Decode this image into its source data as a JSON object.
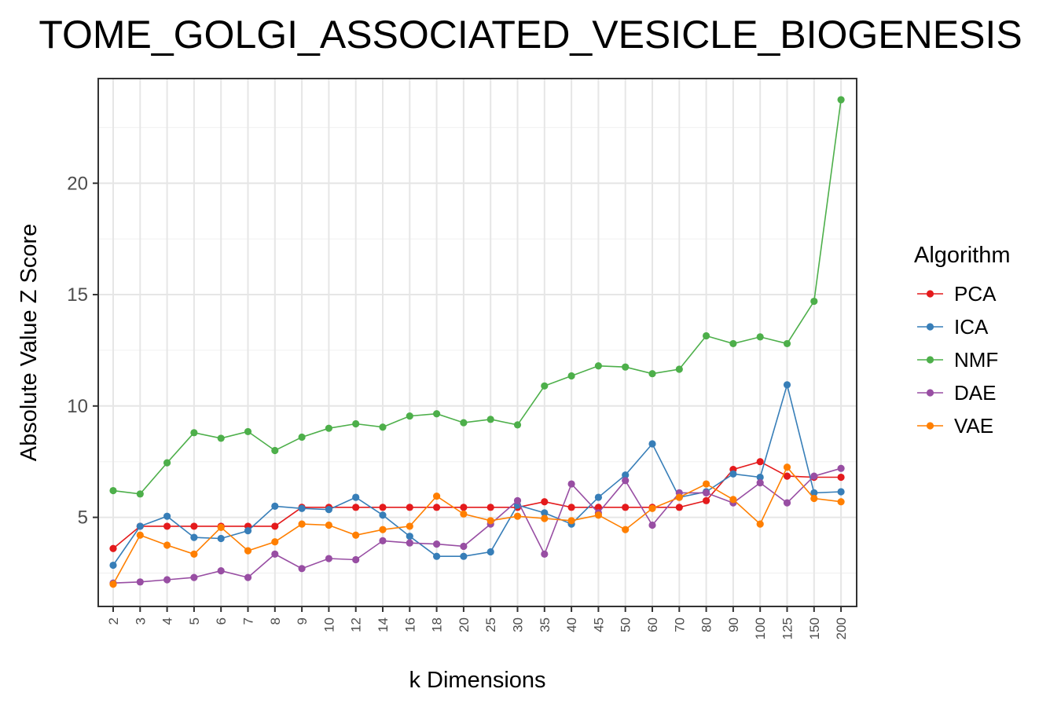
{
  "chart_data": {
    "type": "line",
    "title": "TOME_GOLGI_ASSOCIATED_VESICLE_BIOGENESIS",
    "xlabel": "k Dimensions",
    "ylabel": "Absolute Value Z Score",
    "ylim": [
      1.0,
      24.7
    ],
    "yticks": [
      5,
      10,
      15,
      20
    ],
    "grid": true,
    "legend_title": "Algorithm",
    "legend_position": "right",
    "categories": [
      "2",
      "3",
      "4",
      "5",
      "6",
      "7",
      "8",
      "9",
      "10",
      "12",
      "14",
      "16",
      "18",
      "20",
      "25",
      "30",
      "35",
      "40",
      "45",
      "50",
      "60",
      "70",
      "80",
      "90",
      "100",
      "125",
      "150",
      "200"
    ],
    "series": [
      {
        "name": "PCA",
        "color": "#E41A1C",
        "values": [
          3.6,
          4.6,
          4.6,
          4.6,
          4.6,
          4.6,
          4.6,
          5.45,
          5.45,
          5.45,
          5.45,
          5.45,
          5.45,
          5.45,
          5.45,
          5.45,
          5.7,
          5.45,
          5.45,
          5.45,
          5.45,
          5.45,
          5.75,
          7.15,
          7.5,
          6.85,
          6.8,
          6.8
        ]
      },
      {
        "name": "ICA",
        "color": "#377EB8",
        "values": [
          2.85,
          4.6,
          5.05,
          4.1,
          4.05,
          4.4,
          5.5,
          5.4,
          5.35,
          5.9,
          5.1,
          4.15,
          3.25,
          3.25,
          3.45,
          5.55,
          5.2,
          4.7,
          5.9,
          6.9,
          8.3,
          5.9,
          6.15,
          6.95,
          6.8,
          10.95,
          6.1,
          6.15
        ]
      },
      {
        "name": "NMF",
        "color": "#4DAF4A",
        "values": [
          6.2,
          6.05,
          7.45,
          8.8,
          8.55,
          8.85,
          8.0,
          8.6,
          9.0,
          9.2,
          9.05,
          9.55,
          9.65,
          9.25,
          9.4,
          9.15,
          10.9,
          11.35,
          11.8,
          11.75,
          11.45,
          11.65,
          13.15,
          12.8,
          13.1,
          12.8,
          14.7,
          23.75
        ]
      },
      {
        "name": "DAE",
        "color": "#984EA3",
        "values": [
          2.05,
          2.1,
          2.2,
          2.3,
          2.6,
          2.3,
          3.35,
          2.7,
          3.15,
          3.1,
          3.95,
          3.85,
          3.8,
          3.7,
          4.7,
          5.75,
          3.35,
          6.5,
          5.2,
          6.65,
          4.65,
          6.1,
          6.1,
          5.65,
          6.55,
          5.65,
          6.85,
          7.2
        ]
      },
      {
        "name": "VAE",
        "color": "#FF7F00",
        "values": [
          2.0,
          4.2,
          3.75,
          3.35,
          4.55,
          3.5,
          3.9,
          4.7,
          4.65,
          4.2,
          4.45,
          4.6,
          5.95,
          5.15,
          4.85,
          5.05,
          4.95,
          4.85,
          5.1,
          4.45,
          5.4,
          5.9,
          6.5,
          5.8,
          4.7,
          7.25,
          5.85,
          5.7
        ]
      }
    ]
  }
}
